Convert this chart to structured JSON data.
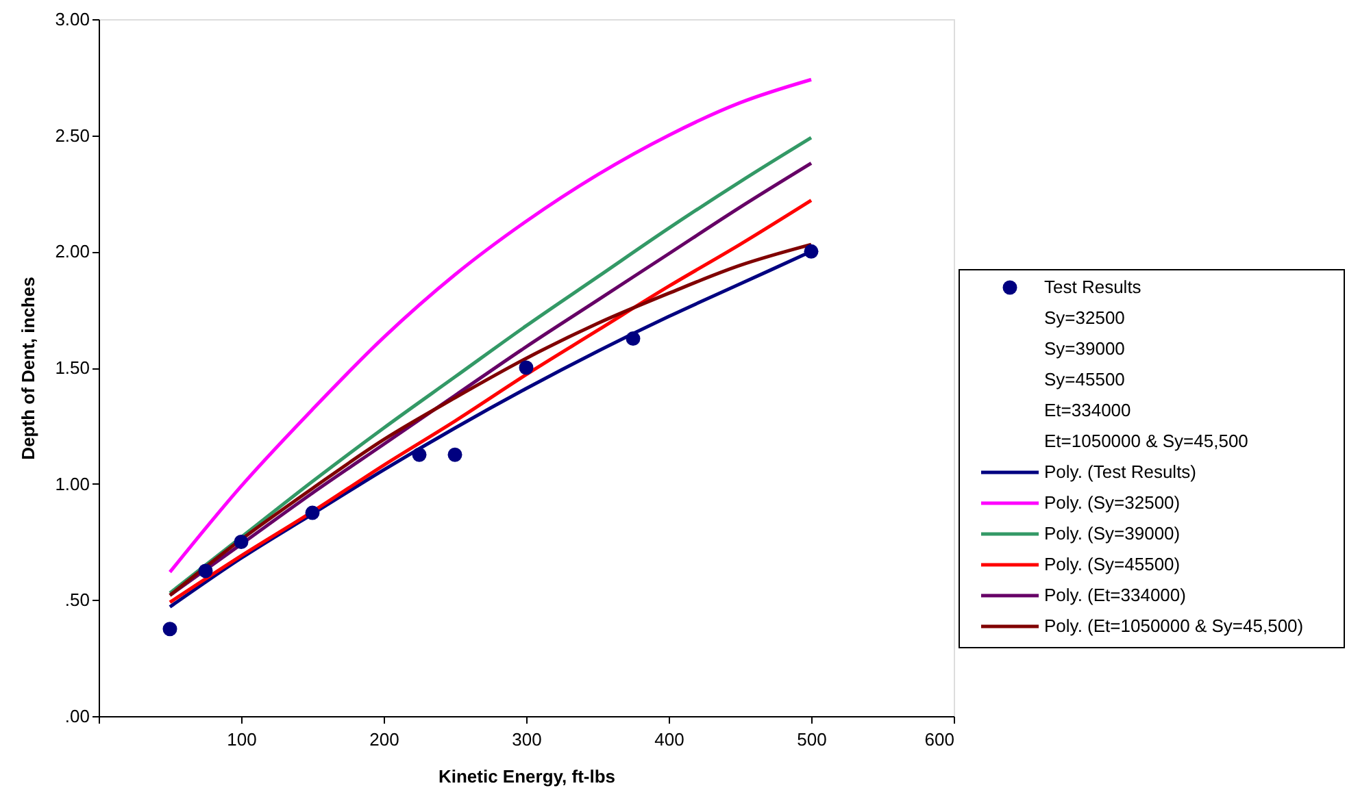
{
  "chart_data": {
    "type": "line",
    "xlabel": "Kinetic Energy, ft-lbs",
    "ylabel": "Depth of Dent, inches",
    "xlim": [
      0,
      600
    ],
    "ylim": [
      0,
      3
    ],
    "xticks": [
      {
        "value": 0,
        "label": null
      },
      100,
      200,
      300,
      400,
      500,
      600
    ],
    "yticks": [
      {
        "value": 0,
        "label": ".00"
      },
      {
        "value": 0.5,
        "label": ".50"
      },
      {
        "value": 1,
        "label": "1.00"
      },
      {
        "value": 1.5,
        "label": "1.50"
      },
      {
        "value": 2,
        "label": "2.00"
      },
      {
        "value": 2.5,
        "label": "2.50"
      },
      {
        "value": 3,
        "label": "3.00"
      }
    ],
    "grid": false,
    "legend": "right",
    "line_style": "solid",
    "series": [
      {
        "name": "Test Results",
        "type": "scatter",
        "marker": "circle",
        "color": "#000080",
        "x": [
          50,
          75,
          100,
          150,
          225,
          250,
          300,
          375,
          500
        ],
        "values": [
          0.375,
          0.625,
          0.75,
          0.875,
          1.125,
          1.125,
          1.5,
          1.625,
          2.0
        ]
      },
      {
        "name": "Sy=32500",
        "type": "scatter",
        "marker": "none"
      },
      {
        "name": "Sy=39000",
        "type": "scatter",
        "marker": "none"
      },
      {
        "name": "Sy=45500",
        "type": "scatter",
        "marker": "none"
      },
      {
        "name": "Et=334000",
        "type": "scatter",
        "marker": "none"
      },
      {
        "name": "Et=1050000 & Sy=45,500",
        "type": "scatter",
        "marker": "none"
      },
      {
        "name": "Poly. (Test Results)",
        "type": "line",
        "color": "#000080",
        "x": [
          50,
          100,
          150,
          200,
          250,
          300,
          350,
          400,
          450,
          500
        ],
        "values": [
          0.47,
          0.68,
          0.87,
          1.06,
          1.24,
          1.41,
          1.57,
          1.72,
          1.86,
          2.0
        ]
      },
      {
        "name": "Poly. (Sy=32500)",
        "type": "line",
        "color": "#ff00ff",
        "x": [
          50,
          100,
          150,
          200,
          250,
          300,
          350,
          400,
          450,
          500
        ],
        "values": [
          0.62,
          0.99,
          1.32,
          1.63,
          1.9,
          2.13,
          2.33,
          2.5,
          2.64,
          2.74
        ]
      },
      {
        "name": "Poly. (Sy=39000)",
        "type": "line",
        "color": "#339966",
        "x": [
          50,
          100,
          150,
          200,
          250,
          300,
          350,
          400,
          450,
          500
        ],
        "values": [
          0.53,
          0.77,
          1.01,
          1.24,
          1.46,
          1.68,
          1.89,
          2.1,
          2.3,
          2.49
        ]
      },
      {
        "name": "Poly. (Sy=45500)",
        "type": "line",
        "color": "#ff0000",
        "x": [
          50,
          100,
          150,
          200,
          250,
          300,
          350,
          400,
          450,
          500
        ],
        "values": [
          0.49,
          0.69,
          0.88,
          1.08,
          1.27,
          1.47,
          1.66,
          1.85,
          2.03,
          2.22
        ]
      },
      {
        "name": "Poly. (Et=334000)",
        "type": "line",
        "color": "#660066",
        "x": [
          50,
          100,
          150,
          200,
          250,
          300,
          350,
          400,
          450,
          500
        ],
        "values": [
          0.52,
          0.74,
          0.96,
          1.17,
          1.38,
          1.59,
          1.79,
          1.99,
          2.19,
          2.38
        ]
      },
      {
        "name": "Poly. (Et=1050000 & Sy=45,500)",
        "type": "line",
        "color": "#800000",
        "x": [
          50,
          100,
          150,
          200,
          250,
          300,
          350,
          400,
          450,
          500
        ],
        "values": [
          0.52,
          0.76,
          0.98,
          1.19,
          1.37,
          1.54,
          1.69,
          1.82,
          1.94,
          2.03
        ]
      }
    ]
  }
}
